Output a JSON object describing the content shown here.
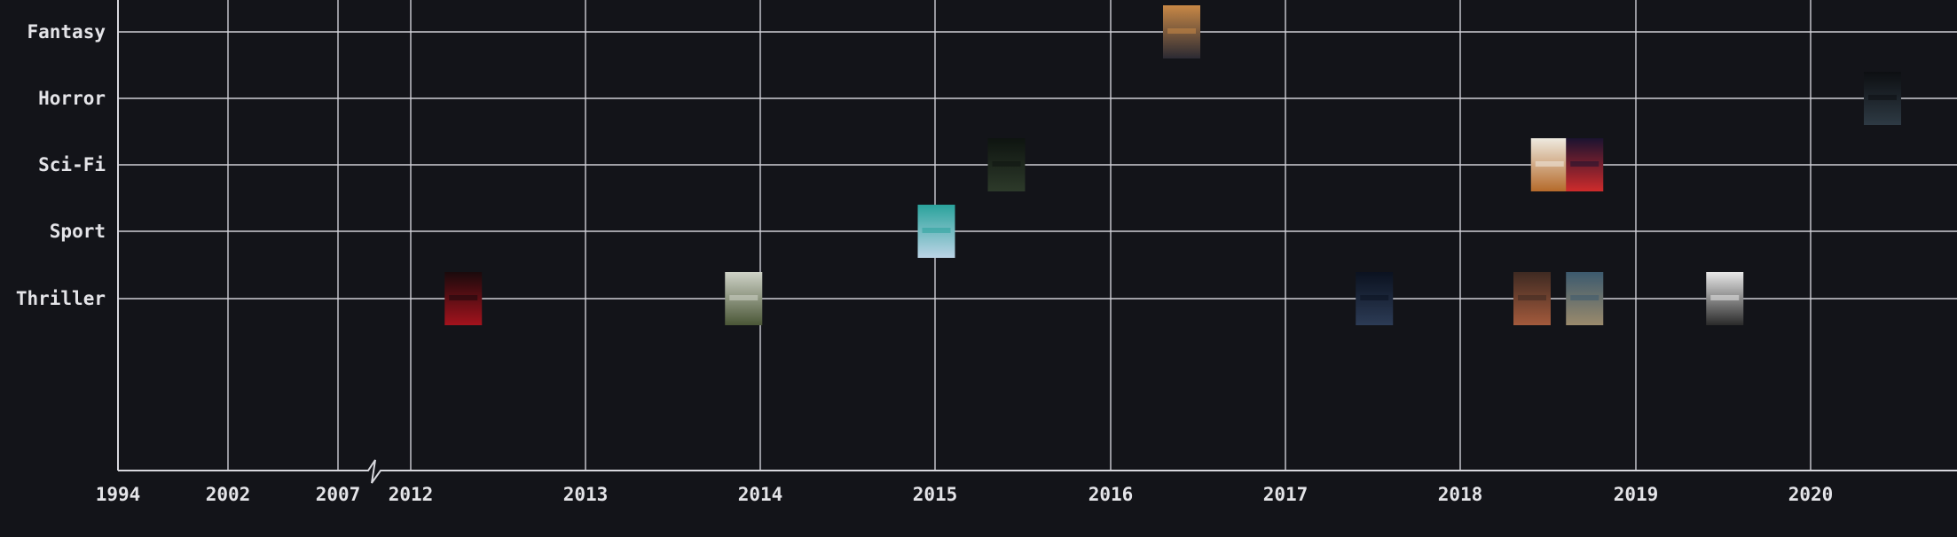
{
  "chart_data": {
    "type": "scatter",
    "title": "",
    "xlabel": "",
    "ylabel": "",
    "x_ticks": [
      "1994",
      "2002",
      "2007",
      "2012",
      "2013",
      "2014",
      "2015",
      "2016",
      "2017",
      "2018",
      "2019",
      "2020"
    ],
    "x_axis_break": {
      "between": [
        "2007",
        "2012"
      ]
    },
    "categories": [
      "Fantasy",
      "Horror",
      "Sci-Fi",
      "Sport",
      "Thriller"
    ],
    "grid": true,
    "marker": "poster-thumbnail",
    "points": [
      {
        "genre": "Thriller",
        "x": 2012.3,
        "colors": [
          "#1a0a0c",
          "#a3131d"
        ]
      },
      {
        "genre": "Thriller",
        "x": 2013.9,
        "colors": [
          "#cfd3c8",
          "#4a5636"
        ]
      },
      {
        "genre": "Sport",
        "x": 2015.0,
        "colors": [
          "#2aa39c",
          "#bcd4e6"
        ]
      },
      {
        "genre": "Sci-Fi",
        "x": 2015.4,
        "colors": [
          "#0e1410",
          "#2d3a2a"
        ]
      },
      {
        "genre": "Fantasy",
        "x": 2016.4,
        "colors": [
          "#c88846",
          "#2b2a33"
        ]
      },
      {
        "genre": "Thriller",
        "x": 2017.5,
        "colors": [
          "#0b1220",
          "#2c3b55"
        ]
      },
      {
        "genre": "Sci-Fi",
        "x": 2018.5,
        "colors": [
          "#eeeae0",
          "#b56a2a"
        ]
      },
      {
        "genre": "Sci-Fi",
        "x": 2018.7,
        "colors": [
          "#1b1330",
          "#cf2b2b"
        ]
      },
      {
        "genre": "Thriller",
        "x": 2018.4,
        "colors": [
          "#3e2a22",
          "#a35a3c"
        ]
      },
      {
        "genre": "Thriller",
        "x": 2018.7,
        "colors": [
          "#3c5a6e",
          "#9a8a6c"
        ]
      },
      {
        "genre": "Thriller",
        "x": 2019.5,
        "colors": [
          "#e8e8e8",
          "#2a2a2a"
        ]
      },
      {
        "genre": "Horror",
        "x": 2020.4,
        "colors": [
          "#0d0f12",
          "#2e3a44"
        ]
      }
    ]
  }
}
